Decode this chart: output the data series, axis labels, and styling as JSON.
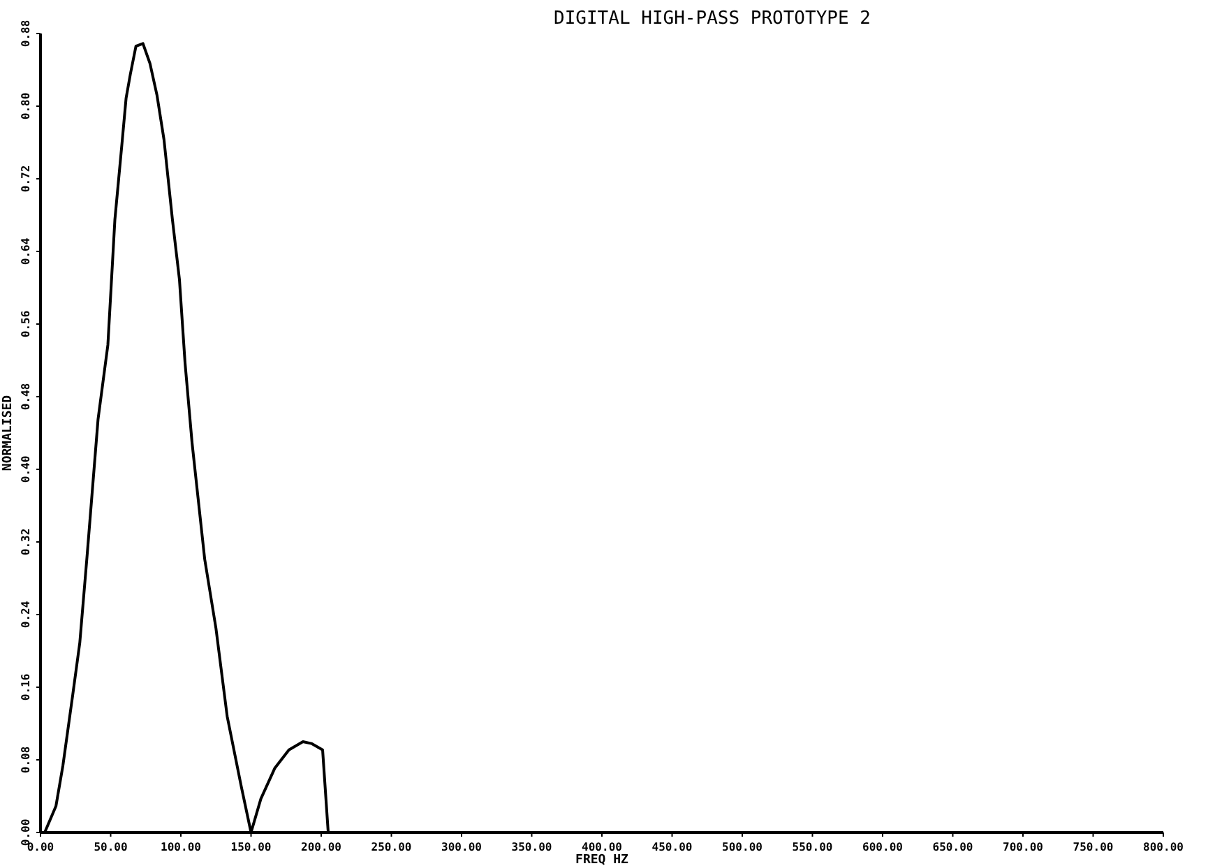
{
  "chart_data": {
    "type": "line",
    "title": "DIGITAL HIGH-PASS PROTOTYPE 2",
    "xlabel": "FREQ HZ",
    "ylabel": "NORMALISED",
    "xlim": [
      0,
      800
    ],
    "ylim": [
      0,
      0.88
    ],
    "xticks": [
      {
        "value": 0,
        "label": "0.00"
      },
      {
        "value": 50,
        "label": "50.00"
      },
      {
        "value": 100,
        "label": "100.00"
      },
      {
        "value": 150,
        "label": "150.00"
      },
      {
        "value": 200,
        "label": "200.00"
      },
      {
        "value": 250,
        "label": "250.00"
      },
      {
        "value": 300,
        "label": "300.00"
      },
      {
        "value": 350,
        "label": "350.00"
      },
      {
        "value": 400,
        "label": "400.00"
      },
      {
        "value": 450,
        "label": "450.00"
      },
      {
        "value": 500,
        "label": "500.00"
      },
      {
        "value": 550,
        "label": "550.00"
      },
      {
        "value": 600,
        "label": "600.00"
      },
      {
        "value": 650,
        "label": "650.00"
      },
      {
        "value": 700,
        "label": "700.00"
      },
      {
        "value": 750,
        "label": "750.00"
      },
      {
        "value": 800,
        "label": "800.00"
      }
    ],
    "yticks": [
      {
        "value": 0,
        "label": "0.00"
      },
      {
        "value": 0.08,
        "label": "0.08"
      },
      {
        "value": 0.16,
        "label": "0.16"
      },
      {
        "value": 0.24,
        "label": "0.24"
      },
      {
        "value": 0.32,
        "label": "0.32"
      },
      {
        "value": 0.4,
        "label": "0.40"
      },
      {
        "value": 0.48,
        "label": "0.48"
      },
      {
        "value": 0.56,
        "label": "0.56"
      },
      {
        "value": 0.64,
        "label": "0.64"
      },
      {
        "value": 0.72,
        "label": "0.72"
      },
      {
        "value": 0.8,
        "label": "0.80"
      },
      {
        "value": 0.88,
        "label": "0.88"
      }
    ],
    "grid": false,
    "marker": "none",
    "line_style": "solid",
    "x": [
      0,
      3,
      11,
      16,
      23,
      28,
      33,
      41,
      48,
      53,
      58,
      61,
      64,
      68,
      73,
      78,
      83,
      88,
      94,
      99,
      103,
      108,
      117,
      125,
      133,
      143,
      150,
      157,
      167,
      177,
      187,
      193,
      201,
      205
    ],
    "series": [
      {
        "color": "#000000",
        "values": [
          0,
          0,
          0.029,
          0.074,
          0.152,
          0.209,
          0.301,
          0.455,
          0.537,
          0.675,
          0.758,
          0.809,
          0.835,
          0.866,
          0.869,
          0.847,
          0.812,
          0.763,
          0.675,
          0.609,
          0.517,
          0.429,
          0.301,
          0.225,
          0.128,
          0.051,
          0,
          0.037,
          0.071,
          0.091,
          0.1,
          0.098,
          0.091,
          0
        ]
      }
    ]
  }
}
